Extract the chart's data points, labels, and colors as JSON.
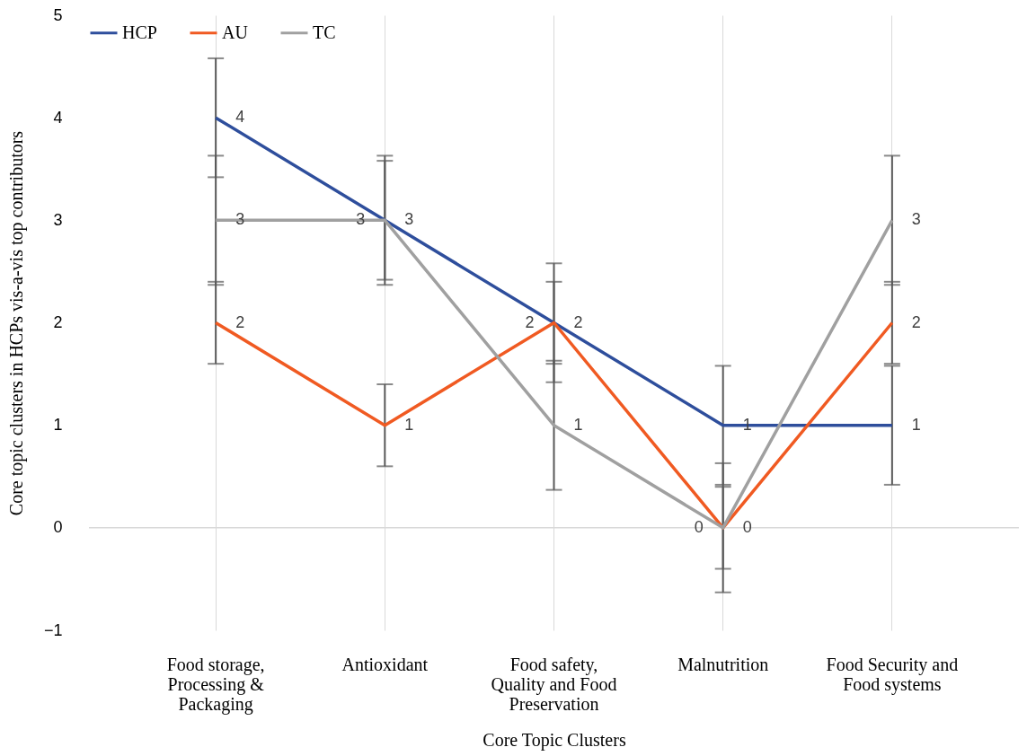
{
  "chart_data": {
    "type": "line",
    "xlabel": "Core  Topic Clusters",
    "ylabel": "Core topic clusters  in HCPs vis-a-vis  top contributors",
    "categories": [
      "Food storage, Processing & Packaging",
      "Antioxidant",
      "Food safety, Quality and Food Preservation",
      "Malnutrition",
      "Food Security and Food systems"
    ],
    "series": [
      {
        "name": "HCP",
        "color": "#2e4e9c",
        "values": [
          4,
          3,
          2,
          1,
          1
        ],
        "errors": [
          0.58,
          0.58,
          0.58,
          0.58,
          0.58
        ]
      },
      {
        "name": "AU",
        "color": "#f05a22",
        "values": [
          2,
          1,
          2,
          0,
          2
        ],
        "errors": [
          0.4,
          0.4,
          0.4,
          0.4,
          0.4
        ]
      },
      {
        "name": "TC",
        "color": "#a0a0a0",
        "values": [
          3,
          3,
          1,
          0,
          3
        ],
        "errors": [
          0.63,
          0.63,
          0.63,
          0.63,
          0.63
        ]
      }
    ],
    "ylim": [
      -1,
      5
    ],
    "yticks": [
      -1,
      0,
      1,
      2,
      3,
      4,
      5
    ],
    "grid": "x",
    "legend": "top",
    "data_labels": true
  }
}
